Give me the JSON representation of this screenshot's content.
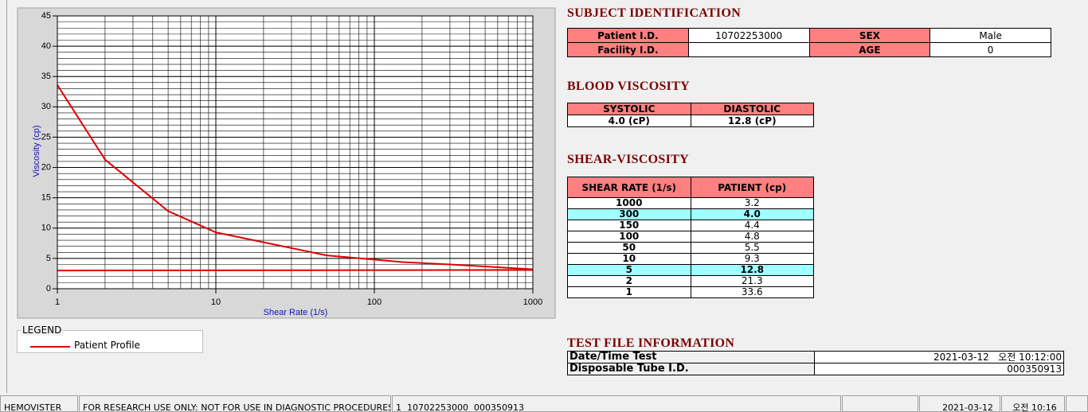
{
  "chart_data": {
    "type": "line",
    "x_label": "Shear Rate (1/s)",
    "y_label": "Viscosity (cp)",
    "xlim": [
      1,
      1000
    ],
    "ylim": [
      0,
      45
    ],
    "xticks": [
      1,
      10,
      100,
      1000
    ],
    "yticks": [
      0,
      5,
      10,
      15,
      20,
      25,
      30,
      35,
      40,
      45
    ],
    "x_log": true,
    "x_minor_grid": true,
    "y_minor_step": 1,
    "legend_title": "LEGEND",
    "series": [
      {
        "name": "Patient Profile",
        "color": "#e00000",
        "x": [
          1,
          2,
          5,
          10,
          50,
          100,
          150,
          300,
          1000
        ],
        "values": [
          33.6,
          21.3,
          12.8,
          9.3,
          5.5,
          4.8,
          4.4,
          4.0,
          3.2
        ]
      },
      {
        "color": "#e00000",
        "x": [
          1,
          1000
        ],
        "values": [
          3.0,
          3.1
        ]
      }
    ]
  },
  "subject": {
    "title": "SUBJECT IDENTIFICATION",
    "patient_id_label": "Patient I.D.",
    "patient_id": "10702253000",
    "sex_label": "SEX",
    "sex": "Male",
    "facility_id_label": "Facility I.D.",
    "age_label": "AGE",
    "age": 0
  },
  "blood_viscosity": {
    "title": "BLOOD VISCOSITY",
    "headers": [
      "SYSTOLIC",
      "DIASTOLIC"
    ],
    "values": [
      "4.0 (cP)",
      "12.8 (cP)"
    ]
  },
  "shear_viscosity": {
    "title": "SHEAR-VISCOSITY",
    "headers": [
      "SHEAR RATE (1/s)",
      "PATIENT (cp)"
    ],
    "rows": [
      [
        "1000",
        "3.2"
      ],
      [
        "300",
        "4.0"
      ],
      [
        "150",
        "4.4"
      ],
      [
        "100",
        "4.8"
      ],
      [
        "50",
        "5.5"
      ],
      [
        "10",
        "9.3"
      ],
      [
        "5",
        "12.8"
      ],
      [
        "2",
        "21.3"
      ],
      [
        "1",
        "33.6"
      ]
    ],
    "highlight_rows": [
      1,
      6
    ],
    "highlight_color": "#a0ffff"
  },
  "test_file": {
    "title": "TEST FILE INFORMATION",
    "rows": [
      [
        "Date/Time Test",
        "2021-03-12   오전 10:12:00"
      ],
      [
        "Disposable Tube I.D.",
        "000350913"
      ]
    ]
  },
  "status_bar": [
    "HEMOVISTER",
    "FOR RESEARCH USE ONLY: NOT FOR USE IN DIAGNOSTIC PROCEDURES",
    "1  10702253000  000350913",
    "2021-03-12",
    "오전 10:16"
  ]
}
